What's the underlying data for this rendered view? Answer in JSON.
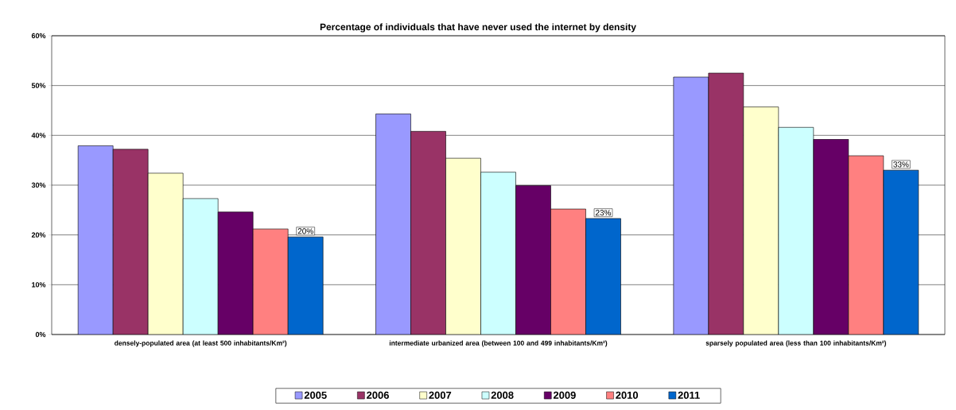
{
  "chart_data": {
    "type": "bar",
    "title": "Percentage of individuals that have never used the internet by density",
    "categories": [
      "densely-populated area (at least 500 inhabitants/Km²)",
      "intermediate urbanized area (between 100 and 499 inhabitants/Km²)",
      "sparsely populated area (less than 100 inhabitants/Km²)"
    ],
    "series": [
      {
        "name": "2005",
        "color": "#9999ff",
        "values": [
          37.9,
          44.3,
          51.7
        ]
      },
      {
        "name": "2006",
        "color": "#993366",
        "values": [
          37.2,
          40.8,
          52.5
        ]
      },
      {
        "name": "2007",
        "color": "#ffffcc",
        "values": [
          32.4,
          35.4,
          45.7
        ]
      },
      {
        "name": "2008",
        "color": "#ccffff",
        "values": [
          27.3,
          32.6,
          41.6
        ]
      },
      {
        "name": "2009",
        "color": "#660066",
        "values": [
          24.6,
          29.9,
          39.2
        ]
      },
      {
        "name": "2010",
        "color": "#ff8080",
        "values": [
          21.2,
          25.2,
          35.9
        ]
      },
      {
        "name": "2011",
        "color": "#0066cc",
        "values": [
          19.6,
          23.3,
          33.0
        ],
        "value_labels": [
          "20%",
          "23%",
          "33%"
        ]
      }
    ],
    "ylim": [
      0,
      60
    ],
    "yticks": [
      {
        "value": 0,
        "label": "0%"
      },
      {
        "value": 10,
        "label": "10%"
      },
      {
        "value": 20,
        "label": "20%"
      },
      {
        "value": 30,
        "label": "30%"
      },
      {
        "value": 40,
        "label": "40%"
      },
      {
        "value": 50,
        "label": "50%"
      },
      {
        "value": 60,
        "label": "60%"
      }
    ],
    "grid": "y",
    "legend": "bottom"
  }
}
